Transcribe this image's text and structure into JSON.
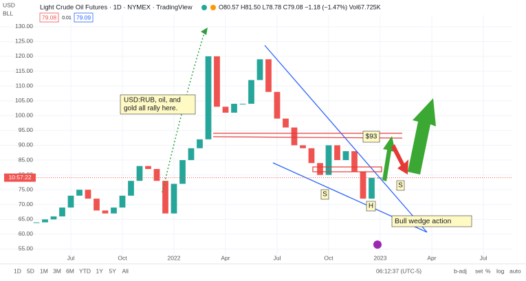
{
  "header": {
    "symbol_units": "USD",
    "symbol_unit2": "BLL",
    "title": "Light Crude Oil Futures · 1D · NYMEX · TradingView",
    "ohlc": "O80.57 H81.50 L78.78 C79.08 −1.18 (−1.47%) Vol67.725K",
    "bid": "79.08",
    "spread": "0.01",
    "ask": "79.09",
    "countdown": "10:57:22"
  },
  "annotations": {
    "note": [
      "USD:RUB, oil, and",
      "gold all rally here."
    ],
    "level": "$93",
    "shoulder_left": "S",
    "head": "H",
    "shoulder_right": "S",
    "wedge": "Bull wedge action"
  },
  "footer": {
    "ranges": [
      "1D",
      "5D",
      "1M",
      "3M",
      "6M",
      "YTD",
      "1Y",
      "5Y",
      "All"
    ],
    "clock": "06:12:37 (UTC-5)",
    "options": [
      "b-adj",
      "set",
      "%",
      "log",
      "auto"
    ]
  },
  "chart_data": {
    "type": "candlestick",
    "title": "Light Crude Oil Futures",
    "x": [
      4,
      4.5,
      5,
      5.5,
      6,
      6.5,
      7,
      7.5,
      8,
      8.5,
      9,
      9.5,
      10,
      10.5,
      11,
      11.5,
      12,
      12.5,
      13,
      13.5,
      14,
      14.5,
      15,
      15.5,
      16,
      16.5,
      17,
      17.5,
      18,
      18.5,
      19,
      19.5,
      20,
      20.5,
      21,
      21.5,
      22,
      22.5,
      23,
      23.5,
      24
    ],
    "values": [
      64,
      65,
      66,
      69,
      73,
      75,
      72,
      68,
      67,
      69,
      73,
      78,
      83,
      82,
      78,
      67,
      77,
      85,
      89,
      92,
      120,
      103,
      101,
      104,
      104,
      112,
      119,
      108,
      99,
      96,
      90,
      89,
      84,
      80,
      90,
      85,
      88,
      81,
      72,
      79,
      79.08
    ],
    "up_color": "#26a69a",
    "down_color": "#ef5350",
    "xlim": [
      1.88,
      31.68
    ],
    "xticks": [
      {
        "value": 6,
        "label": "Jul"
      },
      {
        "value": 9,
        "label": "Oct"
      },
      {
        "value": 12,
        "label": "2022"
      },
      {
        "value": 15,
        "label": "Apr"
      },
      {
        "value": 18,
        "label": "Jul"
      },
      {
        "value": 21,
        "label": "Oct"
      },
      {
        "value": 24,
        "label": "2023"
      },
      {
        "value": 27,
        "label": "Apr"
      },
      {
        "value": 30,
        "label": "Jul"
      }
    ],
    "ylim": [
      52.1,
      133.9
    ],
    "yticks": [
      {
        "value": 55,
        "label": "55.00"
      },
      {
        "value": 60,
        "label": "60.00"
      },
      {
        "value": 65,
        "label": "65.00"
      },
      {
        "value": 70,
        "label": "70.00"
      },
      {
        "value": 75,
        "label": "75.00"
      },
      {
        "value": 80,
        "label": "80.00"
      },
      {
        "value": 85,
        "label": "85.00"
      },
      {
        "value": 90,
        "label": "90.00"
      },
      {
        "value": 95,
        "label": "95.00"
      },
      {
        "value": 100,
        "label": "100.00"
      },
      {
        "value": 105,
        "label": "105.00"
      },
      {
        "value": 110,
        "label": "110.00"
      },
      {
        "value": 115,
        "label": "115.00"
      },
      {
        "value": 120,
        "label": "120.00"
      },
      {
        "value": 125,
        "label": "125.00"
      },
      {
        "value": 130,
        "label": "130.00"
      }
    ],
    "grid": true
  }
}
